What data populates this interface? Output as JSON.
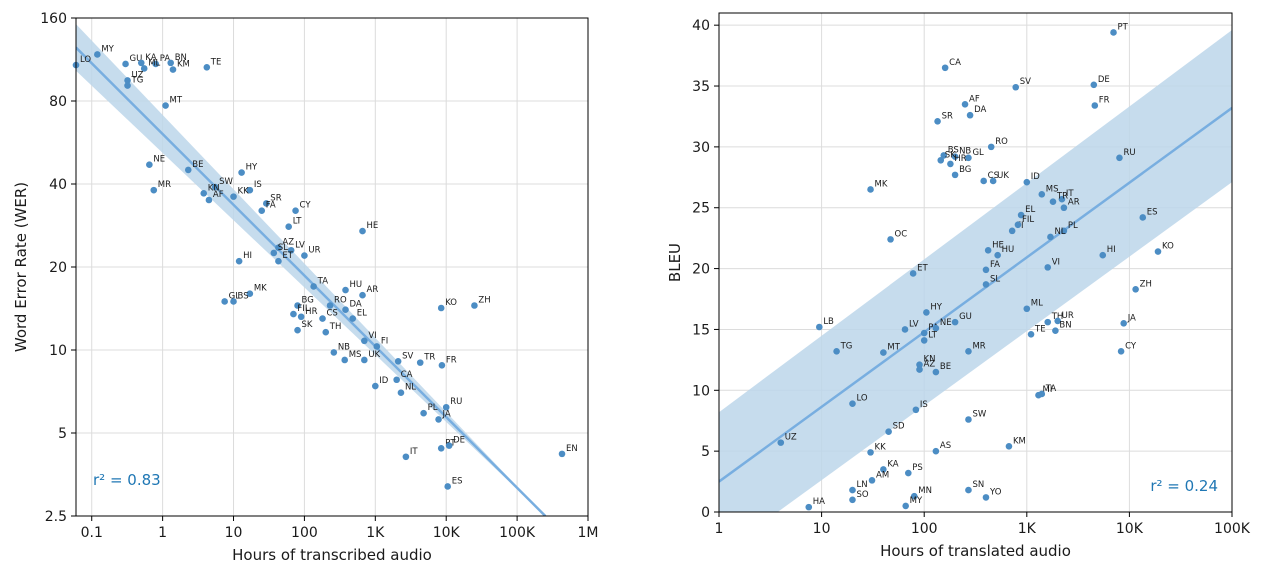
{
  "colors": {
    "points": "#4c8dc4",
    "fit_line": "#78aee0",
    "band": "#bcd6ea",
    "r2_text": "#1f77b4"
  },
  "chart_data": [
    {
      "type": "scatter",
      "xlabel": "Hours of transcribed audio",
      "ylabel": "Word Error Rate (WER)",
      "x_scale": "log",
      "y_scale": "log",
      "xlim": [
        0.06,
        1000000
      ],
      "ylim": [
        2.5,
        160
      ],
      "x_ticks": [
        {
          "v": 0.1,
          "l": "0.1"
        },
        {
          "v": 1,
          "l": "1"
        },
        {
          "v": 10,
          "l": "10"
        },
        {
          "v": 100,
          "l": "100"
        },
        {
          "v": 1000,
          "l": "1K"
        },
        {
          "v": 10000,
          "l": "10K"
        },
        {
          "v": 100000,
          "l": "100K"
        },
        {
          "v": 1000000,
          "l": "1M"
        }
      ],
      "y_ticks": [
        {
          "v": 2.5,
          "l": "2.5"
        },
        {
          "v": 5,
          "l": "5"
        },
        {
          "v": 10,
          "l": "10"
        },
        {
          "v": 20,
          "l": "20"
        },
        {
          "v": 40,
          "l": "40"
        },
        {
          "v": 80,
          "l": "80"
        },
        {
          "v": 160,
          "l": "160"
        }
      ],
      "annotation": "r² = 0.83",
      "grid": true,
      "fit": {
        "x": [
          0.06,
          250000
        ],
        "y": [
          125,
          2.5
        ],
        "band_upper_y": [
          152,
          2.5
        ],
        "band_lower_y": [
          103,
          2.5
        ]
      },
      "points": [
        {
          "label": "LO",
          "x": 0.06,
          "y": 108
        },
        {
          "label": "MY",
          "x": 0.12,
          "y": 118
        },
        {
          "label": "GU",
          "x": 0.3,
          "y": 109
        },
        {
          "label": "KA",
          "x": 0.5,
          "y": 110
        },
        {
          "label": "PA",
          "x": 0.8,
          "y": 109
        },
        {
          "label": "BN",
          "x": 1.3,
          "y": 110
        },
        {
          "label": "ML",
          "x": 0.55,
          "y": 105
        },
        {
          "label": "KM",
          "x": 1.4,
          "y": 104
        },
        {
          "label": "TE",
          "x": 4.2,
          "y": 106
        },
        {
          "label": "UZ",
          "x": 0.32,
          "y": 95
        },
        {
          "label": "TG",
          "x": 0.32,
          "y": 91
        },
        {
          "label": "MT",
          "x": 1.1,
          "y": 77
        },
        {
          "label": "NE",
          "x": 0.65,
          "y": 47
        },
        {
          "label": "MR",
          "x": 0.75,
          "y": 38
        },
        {
          "label": "BE",
          "x": 2.3,
          "y": 45
        },
        {
          "label": "HY",
          "x": 13,
          "y": 44
        },
        {
          "label": "SW",
          "x": 5.5,
          "y": 39
        },
        {
          "label": "IS",
          "x": 17,
          "y": 38
        },
        {
          "label": "KN",
          "x": 3.8,
          "y": 37
        },
        {
          "label": "AF",
          "x": 4.5,
          "y": 35
        },
        {
          "label": "KK",
          "x": 10,
          "y": 36
        },
        {
          "label": "SR",
          "x": 29,
          "y": 34
        },
        {
          "label": "FA",
          "x": 25,
          "y": 32
        },
        {
          "label": "CY",
          "x": 75,
          "y": 32
        },
        {
          "label": "LT",
          "x": 60,
          "y": 28
        },
        {
          "label": "HE",
          "x": 660,
          "y": 27
        },
        {
          "label": "AZ",
          "x": 43,
          "y": 23.5
        },
        {
          "label": "SL",
          "x": 37,
          "y": 22.5
        },
        {
          "label": "LV",
          "x": 65,
          "y": 23
        },
        {
          "label": "UR",
          "x": 100,
          "y": 22
        },
        {
          "label": "ET",
          "x": 43,
          "y": 21
        },
        {
          "label": "HI",
          "x": 12,
          "y": 21
        },
        {
          "label": "TA",
          "x": 135,
          "y": 17
        },
        {
          "label": "HU",
          "x": 380,
          "y": 16.5
        },
        {
          "label": "AR",
          "x": 660,
          "y": 15.8
        },
        {
          "label": "MK",
          "x": 17,
          "y": 16
        },
        {
          "label": "GL",
          "x": 7.5,
          "y": 15
        },
        {
          "label": "BS",
          "x": 10,
          "y": 15
        },
        {
          "label": "KO",
          "x": 8500,
          "y": 14.2
        },
        {
          "label": "ZH",
          "x": 25000,
          "y": 14.5
        },
        {
          "label": "BG",
          "x": 80,
          "y": 14.5
        },
        {
          "label": "RO",
          "x": 230,
          "y": 14.5
        },
        {
          "label": "DA",
          "x": 380,
          "y": 14
        },
        {
          "label": "FIL",
          "x": 70,
          "y": 13.5
        },
        {
          "label": "HR",
          "x": 90,
          "y": 13.2
        },
        {
          "label": "CS",
          "x": 180,
          "y": 13
        },
        {
          "label": "EL",
          "x": 480,
          "y": 13
        },
        {
          "label": "SK",
          "x": 80,
          "y": 11.8
        },
        {
          "label": "TH",
          "x": 200,
          "y": 11.6
        },
        {
          "label": "VI",
          "x": 700,
          "y": 10.8
        },
        {
          "label": "FI",
          "x": 1050,
          "y": 10.3
        },
        {
          "label": "NB",
          "x": 260,
          "y": 9.8
        },
        {
          "label": "MS",
          "x": 370,
          "y": 9.2
        },
        {
          "label": "UK",
          "x": 700,
          "y": 9.2
        },
        {
          "label": "SV",
          "x": 2100,
          "y": 9.1
        },
        {
          "label": "TR",
          "x": 4300,
          "y": 9.0
        },
        {
          "label": "FR",
          "x": 8700,
          "y": 8.8
        },
        {
          "label": "CA",
          "x": 2000,
          "y": 7.8
        },
        {
          "label": "ID",
          "x": 1000,
          "y": 7.4
        },
        {
          "label": "NL",
          "x": 2300,
          "y": 7.0
        },
        {
          "label": "RU",
          "x": 10000,
          "y": 6.2
        },
        {
          "label": "PL",
          "x": 4800,
          "y": 5.9
        },
        {
          "label": "JA",
          "x": 7800,
          "y": 5.6
        },
        {
          "label": "PT",
          "x": 8500,
          "y": 4.4
        },
        {
          "label": "DE",
          "x": 11000,
          "y": 4.5
        },
        {
          "label": "IT",
          "x": 2700,
          "y": 4.1
        },
        {
          "label": "ES",
          "x": 10500,
          "y": 3.2
        },
        {
          "label": "EN",
          "x": 430000,
          "y": 4.2
        }
      ]
    },
    {
      "type": "scatter",
      "xlabel": "Hours of translated audio",
      "ylabel": "BLEU",
      "x_scale": "log",
      "y_scale": "linear",
      "xlim": [
        1,
        100000
      ],
      "ylim": [
        0,
        41
      ],
      "x_ticks": [
        {
          "v": 1,
          "l": "1"
        },
        {
          "v": 10,
          "l": "10"
        },
        {
          "v": 100,
          "l": "100"
        },
        {
          "v": 1000,
          "l": "1K"
        },
        {
          "v": 10000,
          "l": "10K"
        },
        {
          "v": 100000,
          "l": "100K"
        }
      ],
      "y_ticks": [
        {
          "v": 0,
          "l": "0"
        },
        {
          "v": 5,
          "l": "5"
        },
        {
          "v": 10,
          "l": "10"
        },
        {
          "v": 15,
          "l": "15"
        },
        {
          "v": 20,
          "l": "20"
        },
        {
          "v": 25,
          "l": "25"
        },
        {
          "v": 30,
          "l": "30"
        },
        {
          "v": 35,
          "l": "35"
        },
        {
          "v": 40,
          "l": "40"
        }
      ],
      "annotation": "r² = 0.24",
      "grid": true,
      "fit": {
        "x": [
          1,
          100000
        ],
        "y": [
          2.5,
          33.2
        ],
        "band_upper_y": [
          8.2,
          39.6
        ],
        "band_lower_y": [
          -3.5,
          27.1
        ]
      },
      "points": [
        {
          "label": "PT",
          "x": 7000,
          "y": 39.4
        },
        {
          "label": "CA",
          "x": 160,
          "y": 36.5
        },
        {
          "label": "SV",
          "x": 780,
          "y": 34.9
        },
        {
          "label": "DE",
          "x": 4500,
          "y": 35.1
        },
        {
          "label": "FR",
          "x": 4600,
          "y": 33.4
        },
        {
          "label": "AF",
          "x": 250,
          "y": 33.5
        },
        {
          "label": "DA",
          "x": 280,
          "y": 32.6
        },
        {
          "label": "SR",
          "x": 135,
          "y": 32.1
        },
        {
          "label": "RO",
          "x": 450,
          "y": 30.0
        },
        {
          "label": "BS",
          "x": 155,
          "y": 29.3
        },
        {
          "label": "NB",
          "x": 200,
          "y": 29.2
        },
        {
          "label": "GL",
          "x": 270,
          "y": 29.1
        },
        {
          "label": "RU",
          "x": 8000,
          "y": 29.1
        },
        {
          "label": "SK",
          "x": 145,
          "y": 28.9
        },
        {
          "label": "HR",
          "x": 180,
          "y": 28.6
        },
        {
          "label": "BG",
          "x": 200,
          "y": 27.7
        },
        {
          "label": "CS",
          "x": 380,
          "y": 27.2
        },
        {
          "label": "UK",
          "x": 470,
          "y": 27.2
        },
        {
          "label": "MK",
          "x": 30,
          "y": 26.5
        },
        {
          "label": "ID",
          "x": 1000,
          "y": 27.1
        },
        {
          "label": "MS",
          "x": 1400,
          "y": 26.1
        },
        {
          "label": "IT",
          "x": 2200,
          "y": 25.7
        },
        {
          "label": "TR",
          "x": 1800,
          "y": 25.5
        },
        {
          "label": "AR",
          "x": 2300,
          "y": 25.0
        },
        {
          "label": "EL",
          "x": 880,
          "y": 24.4
        },
        {
          "label": "ES",
          "x": 13500,
          "y": 24.2
        },
        {
          "label": "FI",
          "x": 720,
          "y": 23.1
        },
        {
          "label": "FIL",
          "x": 820,
          "y": 23.6
        },
        {
          "label": "PL",
          "x": 2300,
          "y": 23.1
        },
        {
          "label": "NL",
          "x": 1700,
          "y": 22.6
        },
        {
          "label": "OC",
          "x": 47,
          "y": 22.4
        },
        {
          "label": "HE",
          "x": 420,
          "y": 21.5
        },
        {
          "label": "HU",
          "x": 520,
          "y": 21.1
        },
        {
          "label": "HI",
          "x": 5500,
          "y": 21.1
        },
        {
          "label": "KO",
          "x": 19000,
          "y": 21.4
        },
        {
          "label": "VI",
          "x": 1600,
          "y": 20.1
        },
        {
          "label": "FA",
          "x": 400,
          "y": 19.9
        },
        {
          "label": "ET",
          "x": 78,
          "y": 19.6
        },
        {
          "label": "SL",
          "x": 400,
          "y": 18.7
        },
        {
          "label": "ZH",
          "x": 11500,
          "y": 18.3
        },
        {
          "label": "ML",
          "x": 1000,
          "y": 16.7
        },
        {
          "label": "HY",
          "x": 105,
          "y": 16.4
        },
        {
          "label": "TH",
          "x": 1600,
          "y": 15.6
        },
        {
          "label": "UR",
          "x": 2000,
          "y": 15.7
        },
        {
          "label": "JA",
          "x": 8800,
          "y": 15.5
        },
        {
          "label": "LV",
          "x": 65,
          "y": 15.0
        },
        {
          "label": "PA",
          "x": 100,
          "y": 14.7
        },
        {
          "label": "NE",
          "x": 130,
          "y": 15.1
        },
        {
          "label": "GU",
          "x": 200,
          "y": 15.6
        },
        {
          "label": "LB",
          "x": 9.5,
          "y": 15.2
        },
        {
          "label": "TE",
          "x": 1100,
          "y": 14.6
        },
        {
          "label": "BN",
          "x": 1900,
          "y": 14.9
        },
        {
          "label": "LT",
          "x": 100,
          "y": 14.1
        },
        {
          "label": "TG",
          "x": 14,
          "y": 13.2
        },
        {
          "label": "MT",
          "x": 40,
          "y": 13.1
        },
        {
          "label": "MR",
          "x": 270,
          "y": 13.2
        },
        {
          "label": "CY",
          "x": 8300,
          "y": 13.2
        },
        {
          "label": "KN",
          "x": 90,
          "y": 12.1
        },
        {
          "label": "AZ",
          "x": 90,
          "y": 11.7
        },
        {
          "label": "BE",
          "x": 130,
          "y": 11.5
        },
        {
          "label": "MI",
          "x": 1300,
          "y": 9.6
        },
        {
          "label": "TA",
          "x": 1400,
          "y": 9.7
        },
        {
          "label": "LO",
          "x": 20,
          "y": 8.9
        },
        {
          "label": "IS",
          "x": 83,
          "y": 8.4
        },
        {
          "label": "SW",
          "x": 270,
          "y": 7.6
        },
        {
          "label": "SD",
          "x": 45,
          "y": 6.6
        },
        {
          "label": "KM",
          "x": 670,
          "y": 5.4
        },
        {
          "label": "UZ",
          "x": 4,
          "y": 5.7
        },
        {
          "label": "KK",
          "x": 30,
          "y": 4.9
        },
        {
          "label": "AS",
          "x": 130,
          "y": 5.0
        },
        {
          "label": "KA",
          "x": 40,
          "y": 3.5
        },
        {
          "label": "PS",
          "x": 70,
          "y": 3.2
        },
        {
          "label": "AM",
          "x": 31,
          "y": 2.6
        },
        {
          "label": "LN",
          "x": 20,
          "y": 1.8
        },
        {
          "label": "SN",
          "x": 270,
          "y": 1.8
        },
        {
          "label": "MN",
          "x": 80,
          "y": 1.3
        },
        {
          "label": "YO",
          "x": 400,
          "y": 1.2
        },
        {
          "label": "SO",
          "x": 20,
          "y": 1.0
        },
        {
          "label": "MY",
          "x": 66,
          "y": 0.5
        },
        {
          "label": "HA",
          "x": 7.5,
          "y": 0.4
        }
      ]
    }
  ]
}
